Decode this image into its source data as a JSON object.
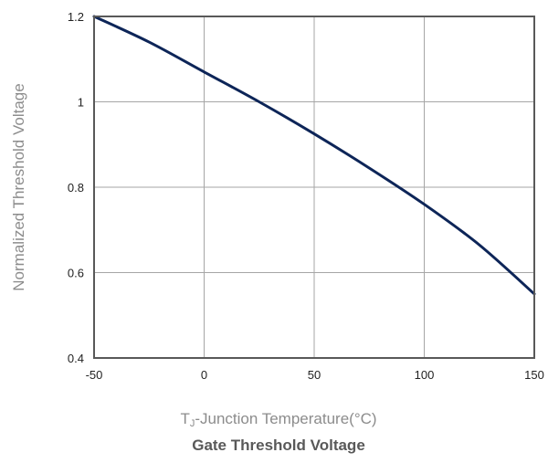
{
  "chart_data": {
    "type": "line",
    "title": "Gate Threshold Voltage",
    "xlabel_prefix": "T",
    "xlabel_sub": "J",
    "xlabel_rest": "-Junction Temperature(°C)",
    "ylabel": "Normalized Threshold Voltage",
    "xlim": [
      -50,
      150
    ],
    "ylim": [
      0.4,
      1.2
    ],
    "grid": true,
    "x_ticks": [
      -50,
      0,
      50,
      100,
      150
    ],
    "x_tick_labels": [
      "-50",
      "0",
      "50",
      "100",
      "150"
    ],
    "y_ticks": [
      0.4,
      0.6,
      0.8,
      1.0,
      1.2
    ],
    "y_tick_labels": [
      "0.4",
      "0.6",
      "0.8",
      "1",
      "1.2"
    ],
    "series": [
      {
        "color": "#0d2558",
        "x": [
          -50,
          -25,
          0,
          25,
          50,
          75,
          100,
          125,
          150
        ],
        "y": [
          1.2,
          1.14,
          1.07,
          1.0,
          0.925,
          0.845,
          0.76,
          0.665,
          0.55
        ]
      }
    ]
  }
}
